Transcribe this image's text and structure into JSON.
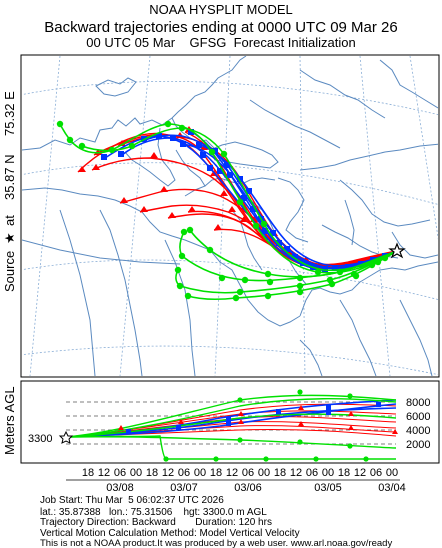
{
  "header": {
    "line1": "NOAA HYSPLIT MODEL",
    "line2": "Backward trajectories ending at 0000 UTC 09 Mar 26",
    "line3": "00 UTC 05 Mar    GFSG  Forecast Initialization"
  },
  "side_label": {
    "source": "Source",
    "star": "★",
    "at": "at",
    "lat": "35.87 N",
    "lon": "75.32 E"
  },
  "vertical_panel": {
    "ylabel": "Meters AGL",
    "start_height": "3300",
    "right_ticks": [
      "8000",
      "6000",
      "4000",
      "2000"
    ],
    "hour_ticks": [
      "18",
      "12",
      "06",
      "00",
      "18",
      "12",
      "06",
      "00",
      "18",
      "12",
      "06",
      "00",
      "18",
      "12",
      "06",
      "00",
      "18",
      "12",
      "06",
      "00"
    ],
    "date_ticks": [
      "03/08",
      "03/07",
      "03/06",
      "03/05",
      "03/04"
    ]
  },
  "footer": {
    "line1": "Job Start: Thu Mar  5 06:02:37 UTC 2026",
    "line2": "lat.: 35.87388   lon.: 75.31506    hgt: 3300.0 m AGL",
    "line3": "Trajectory Direction: Backward       Duration: 120 hrs",
    "line4": "Vertical Motion Calculation Method: Model Vertical Velocity",
    "line5": "This is not a NOAA product.It was produced by a web user. www.arl.noaa.gov/ready"
  },
  "colors": {
    "map_line": "#5b8ac0",
    "grid": "#8aaed6",
    "red": "#ff0000",
    "blue": "#0033ff",
    "green": "#00e000"
  }
}
